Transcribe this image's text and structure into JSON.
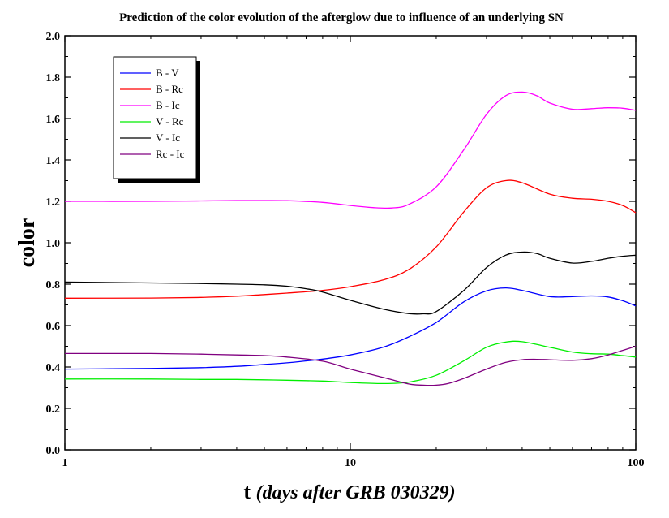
{
  "chart_data": {
    "type": "line",
    "title": "Prediction of the color evolution of the afterglow due to influence of an underlying SN",
    "xlabel_main": "t",
    "xlabel_italic": "(days after GRB 030329)",
    "ylabel": "color",
    "x_scale": "log",
    "xlim": [
      1,
      100
    ],
    "ylim": [
      0.0,
      2.0
    ],
    "x_ticks": [
      1,
      10,
      100
    ],
    "x_tick_labels": [
      "1",
      "10",
      "100"
    ],
    "y_ticks": [
      0.0,
      0.2,
      0.4,
      0.6,
      0.8,
      1.0,
      1.2,
      1.4,
      1.6,
      1.8,
      2.0
    ],
    "y_tick_labels": [
      "0.0",
      "0.2",
      "0.4",
      "0.6",
      "0.8",
      "1.0",
      "1.2",
      "1.4",
      "1.6",
      "1.8",
      "2.0"
    ],
    "grid": false,
    "legend_position": "top-left",
    "series": [
      {
        "name": "B - V",
        "color": "#0000ff",
        "x": [
          1,
          2,
          3,
          4,
          5,
          6,
          8,
          10,
          13,
          16,
          20,
          25,
          30,
          35,
          40,
          50,
          60,
          70,
          80,
          90,
          100
        ],
        "y": [
          0.39,
          0.393,
          0.397,
          0.403,
          0.412,
          0.42,
          0.438,
          0.458,
          0.495,
          0.545,
          0.615,
          0.715,
          0.768,
          0.782,
          0.77,
          0.74,
          0.74,
          0.743,
          0.738,
          0.72,
          0.695
        ]
      },
      {
        "name": "B - Rc",
        "color": "#ff0000",
        "x": [
          1,
          2,
          3,
          4,
          5,
          6,
          8,
          10,
          13,
          16,
          20,
          25,
          30,
          35,
          40,
          50,
          60,
          70,
          80,
          90,
          100
        ],
        "y": [
          0.732,
          0.733,
          0.736,
          0.742,
          0.75,
          0.757,
          0.77,
          0.788,
          0.82,
          0.87,
          0.98,
          1.15,
          1.265,
          1.3,
          1.29,
          1.235,
          1.215,
          1.21,
          1.2,
          1.18,
          1.145
        ]
      },
      {
        "name": "B - Ic",
        "color": "#ff00ff",
        "x": [
          1,
          2,
          3,
          4,
          5,
          6,
          8,
          10,
          12,
          14,
          16,
          20,
          25,
          30,
          35,
          40,
          45,
          50,
          60,
          70,
          80,
          90,
          100
        ],
        "y": [
          1.2,
          1.2,
          1.202,
          1.204,
          1.204,
          1.203,
          1.195,
          1.18,
          1.17,
          1.168,
          1.185,
          1.27,
          1.45,
          1.62,
          1.71,
          1.728,
          1.71,
          1.675,
          1.645,
          1.648,
          1.652,
          1.65,
          1.64
        ]
      },
      {
        "name": "V - Rc",
        "color": "#00ee00",
        "x": [
          1,
          2,
          3,
          4,
          5,
          6,
          8,
          10,
          13,
          16,
          20,
          25,
          30,
          35,
          40,
          50,
          60,
          70,
          80,
          90,
          100
        ],
        "y": [
          0.342,
          0.342,
          0.34,
          0.34,
          0.338,
          0.336,
          0.332,
          0.325,
          0.32,
          0.327,
          0.36,
          0.43,
          0.495,
          0.52,
          0.522,
          0.495,
          0.472,
          0.464,
          0.462,
          0.455,
          0.448
        ]
      },
      {
        "name": "V - Ic",
        "color": "#000000",
        "x": [
          1,
          2,
          3,
          4,
          5,
          6,
          7,
          8,
          10,
          13,
          16,
          18,
          20,
          25,
          30,
          35,
          40,
          45,
          50,
          60,
          70,
          80,
          90,
          100
        ],
        "y": [
          0.81,
          0.806,
          0.803,
          0.8,
          0.797,
          0.79,
          0.778,
          0.762,
          0.722,
          0.68,
          0.658,
          0.657,
          0.668,
          0.77,
          0.88,
          0.94,
          0.955,
          0.948,
          0.925,
          0.902,
          0.91,
          0.925,
          0.935,
          0.94
        ]
      },
      {
        "name": "Rc - Ic",
        "color": "#800080",
        "x": [
          1,
          2,
          3,
          4,
          5,
          6,
          8,
          10,
          13,
          16,
          18,
          20,
          22,
          25,
          30,
          35,
          40,
          45,
          50,
          60,
          70,
          80,
          90,
          100
        ],
        "y": [
          0.465,
          0.465,
          0.462,
          0.458,
          0.455,
          0.448,
          0.428,
          0.39,
          0.35,
          0.318,
          0.312,
          0.312,
          0.32,
          0.345,
          0.39,
          0.422,
          0.435,
          0.437,
          0.435,
          0.432,
          0.44,
          0.458,
          0.48,
          0.5
        ]
      }
    ]
  }
}
